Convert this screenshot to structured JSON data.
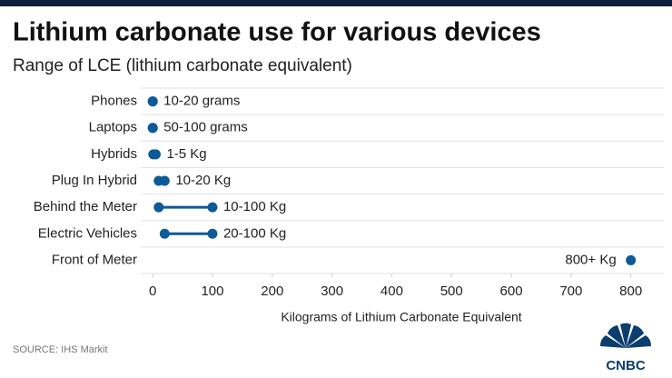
{
  "chart_data": {
    "type": "dumbbell",
    "title": "Lithium carbonate use for various devices",
    "subtitle": "Range of LCE (lithium carbonate equivalent)",
    "x_label": "Kilograms of Lithium Carbonate Equivalent",
    "categories": [
      "Phones",
      "Laptops",
      "Hybrids",
      "Plug In Hybrid",
      "Behind the Meter",
      "Electric Vehicles",
      "Front of Meter"
    ],
    "low": [
      0.01,
      0.05,
      1,
      10,
      10,
      20,
      800
    ],
    "high": [
      0.02,
      0.1,
      5,
      20,
      100,
      100,
      null
    ],
    "value_labels": [
      "10-20 grams",
      "50-100 grams",
      "1-5 Kg",
      "10-20 Kg",
      "10-100 Kg",
      "20-100 Kg",
      "800+ Kg"
    ],
    "color": "#0c5a97",
    "xlim": [
      -20,
      840
    ],
    "xticks": [
      0,
      100,
      200,
      300,
      400,
      500,
      600,
      700,
      800
    ],
    "source": "SOURCE: IHS Markit",
    "logo": "CNBC"
  }
}
